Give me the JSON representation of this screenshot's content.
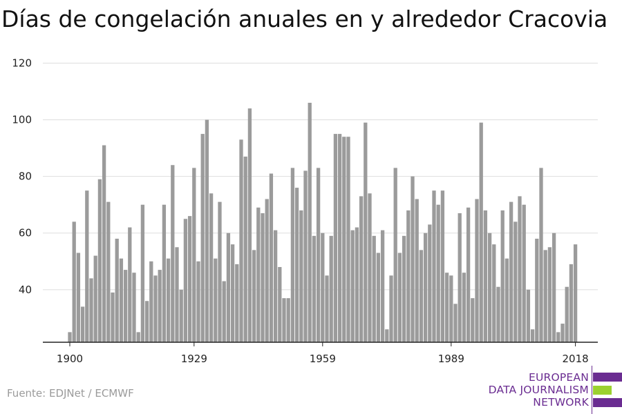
{
  "title": "Días de congelación anuales en y alrededor Cracovia",
  "source": "Fuente: EDJNet / ECMWF",
  "logo": {
    "lines": [
      "EUROPEAN",
      "DATA JOURNALISM",
      "NETWORK"
    ],
    "colors": {
      "primary": "#6a2c91",
      "accent": "#9bd12f"
    }
  },
  "colors": {
    "bar": "#9b9b9b",
    "grid": "#dddddd",
    "axis": "#222222"
  },
  "chart_data": {
    "type": "bar",
    "title": "Días de congelación anuales en y alrededor Cracovia",
    "xlabel": "",
    "ylabel": "",
    "x_ticks": [
      "1900",
      "1929",
      "1959",
      "1989",
      "2018"
    ],
    "y_ticks": [
      40,
      60,
      80,
      100,
      120
    ],
    "ylim": [
      21,
      120
    ],
    "grid": true,
    "legend": "none",
    "categories": [
      1900,
      1901,
      1902,
      1903,
      1904,
      1905,
      1906,
      1907,
      1908,
      1909,
      1910,
      1911,
      1912,
      1913,
      1914,
      1915,
      1916,
      1917,
      1918,
      1919,
      1920,
      1921,
      1922,
      1923,
      1924,
      1925,
      1926,
      1927,
      1928,
      1929,
      1930,
      1931,
      1932,
      1933,
      1934,
      1935,
      1936,
      1937,
      1938,
      1939,
      1940,
      1941,
      1942,
      1943,
      1944,
      1945,
      1946,
      1947,
      1948,
      1949,
      1950,
      1951,
      1952,
      1953,
      1954,
      1955,
      1956,
      1957,
      1958,
      1959,
      1960,
      1961,
      1962,
      1963,
      1964,
      1965,
      1966,
      1967,
      1968,
      1969,
      1970,
      1971,
      1972,
      1973,
      1974,
      1975,
      1976,
      1977,
      1978,
      1979,
      1980,
      1981,
      1982,
      1983,
      1984,
      1985,
      1986,
      1987,
      1988,
      1989,
      1990,
      1991,
      1992,
      1993,
      1994,
      1995,
      1996,
      1997,
      1998,
      1999,
      2000,
      2001,
      2002,
      2003,
      2004,
      2005,
      2006,
      2007,
      2008,
      2009,
      2010,
      2011,
      2012,
      2013,
      2014,
      2015,
      2016,
      2017,
      2018
    ],
    "values": [
      25,
      64,
      53,
      34,
      75,
      44,
      52,
      79,
      91,
      71,
      39,
      58,
      51,
      47,
      62,
      46,
      25,
      70,
      36,
      50,
      45,
      47,
      70,
      51,
      84,
      55,
      40,
      65,
      66,
      83,
      50,
      95,
      100,
      74,
      51,
      71,
      43,
      60,
      56,
      49,
      93,
      87,
      104,
      54,
      69,
      67,
      72,
      81,
      61,
      48,
      37,
      37,
      83,
      76,
      68,
      82,
      106,
      59,
      83,
      60,
      45,
      59,
      95,
      95,
      94,
      94,
      61,
      62,
      73,
      99,
      74,
      59,
      53,
      61,
      26,
      45,
      83,
      53,
      59,
      68,
      80,
      72,
      54,
      60,
      63,
      75,
      70,
      75,
      46,
      45,
      35,
      67,
      46,
      69,
      37,
      72,
      99,
      68,
      60,
      56,
      41,
      68,
      51,
      71,
      64,
      73,
      70,
      40,
      26,
      58,
      83,
      54,
      55,
      60,
      25,
      28,
      41,
      49,
      56
    ]
  }
}
